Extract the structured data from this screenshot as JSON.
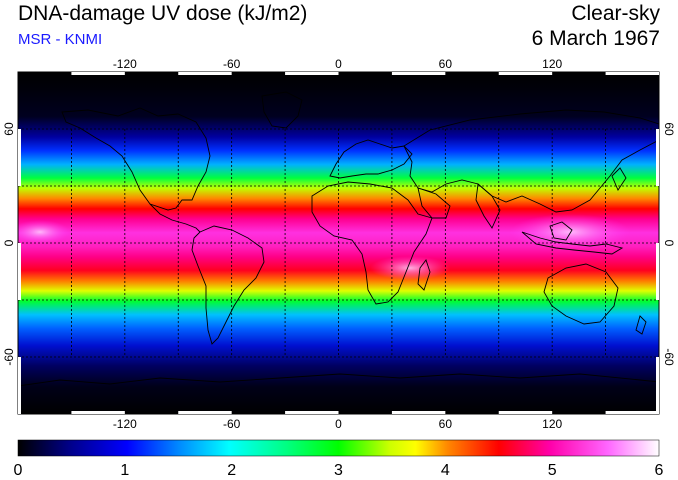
{
  "header": {
    "title": "DNA-damage UV dose (kJ/m2)",
    "source": "MSR - KNMI",
    "sky_condition": "Clear-sky",
    "date": "6 March 1967"
  },
  "map": {
    "projection": "equirectangular",
    "lon_range": [
      -180,
      180
    ],
    "lat_range": [
      -90,
      90
    ],
    "lon_tick_labels": [
      "-120",
      "-60",
      "0",
      "60",
      "120"
    ],
    "lon_tick_values": [
      -120,
      -60,
      0,
      60,
      120
    ],
    "lat_tick_labels": [
      "60",
      "0",
      "-60"
    ],
    "lat_tick_values": [
      60,
      0,
      -60
    ],
    "gridlines": "dashed",
    "grid_lon": [
      -150,
      -120,
      -90,
      -60,
      -30,
      0,
      30,
      60,
      90,
      120,
      150
    ],
    "grid_lat": [
      -60,
      -30,
      0,
      30,
      60
    ],
    "coastlines": true
  },
  "colorbar": {
    "min": 0,
    "max": 6,
    "tick_labels": [
      "0",
      "1",
      "2",
      "3",
      "4",
      "5",
      "6"
    ],
    "tick_values": [
      0,
      1,
      2,
      3,
      4,
      5,
      6
    ],
    "colors": [
      "#000000",
      "#000088",
      "#0000ff",
      "#00ffff",
      "#00ff00",
      "#ffff00",
      "#ff8800",
      "#ff0000",
      "#ff00aa",
      "#ff66ff",
      "#ffffff"
    ]
  }
}
